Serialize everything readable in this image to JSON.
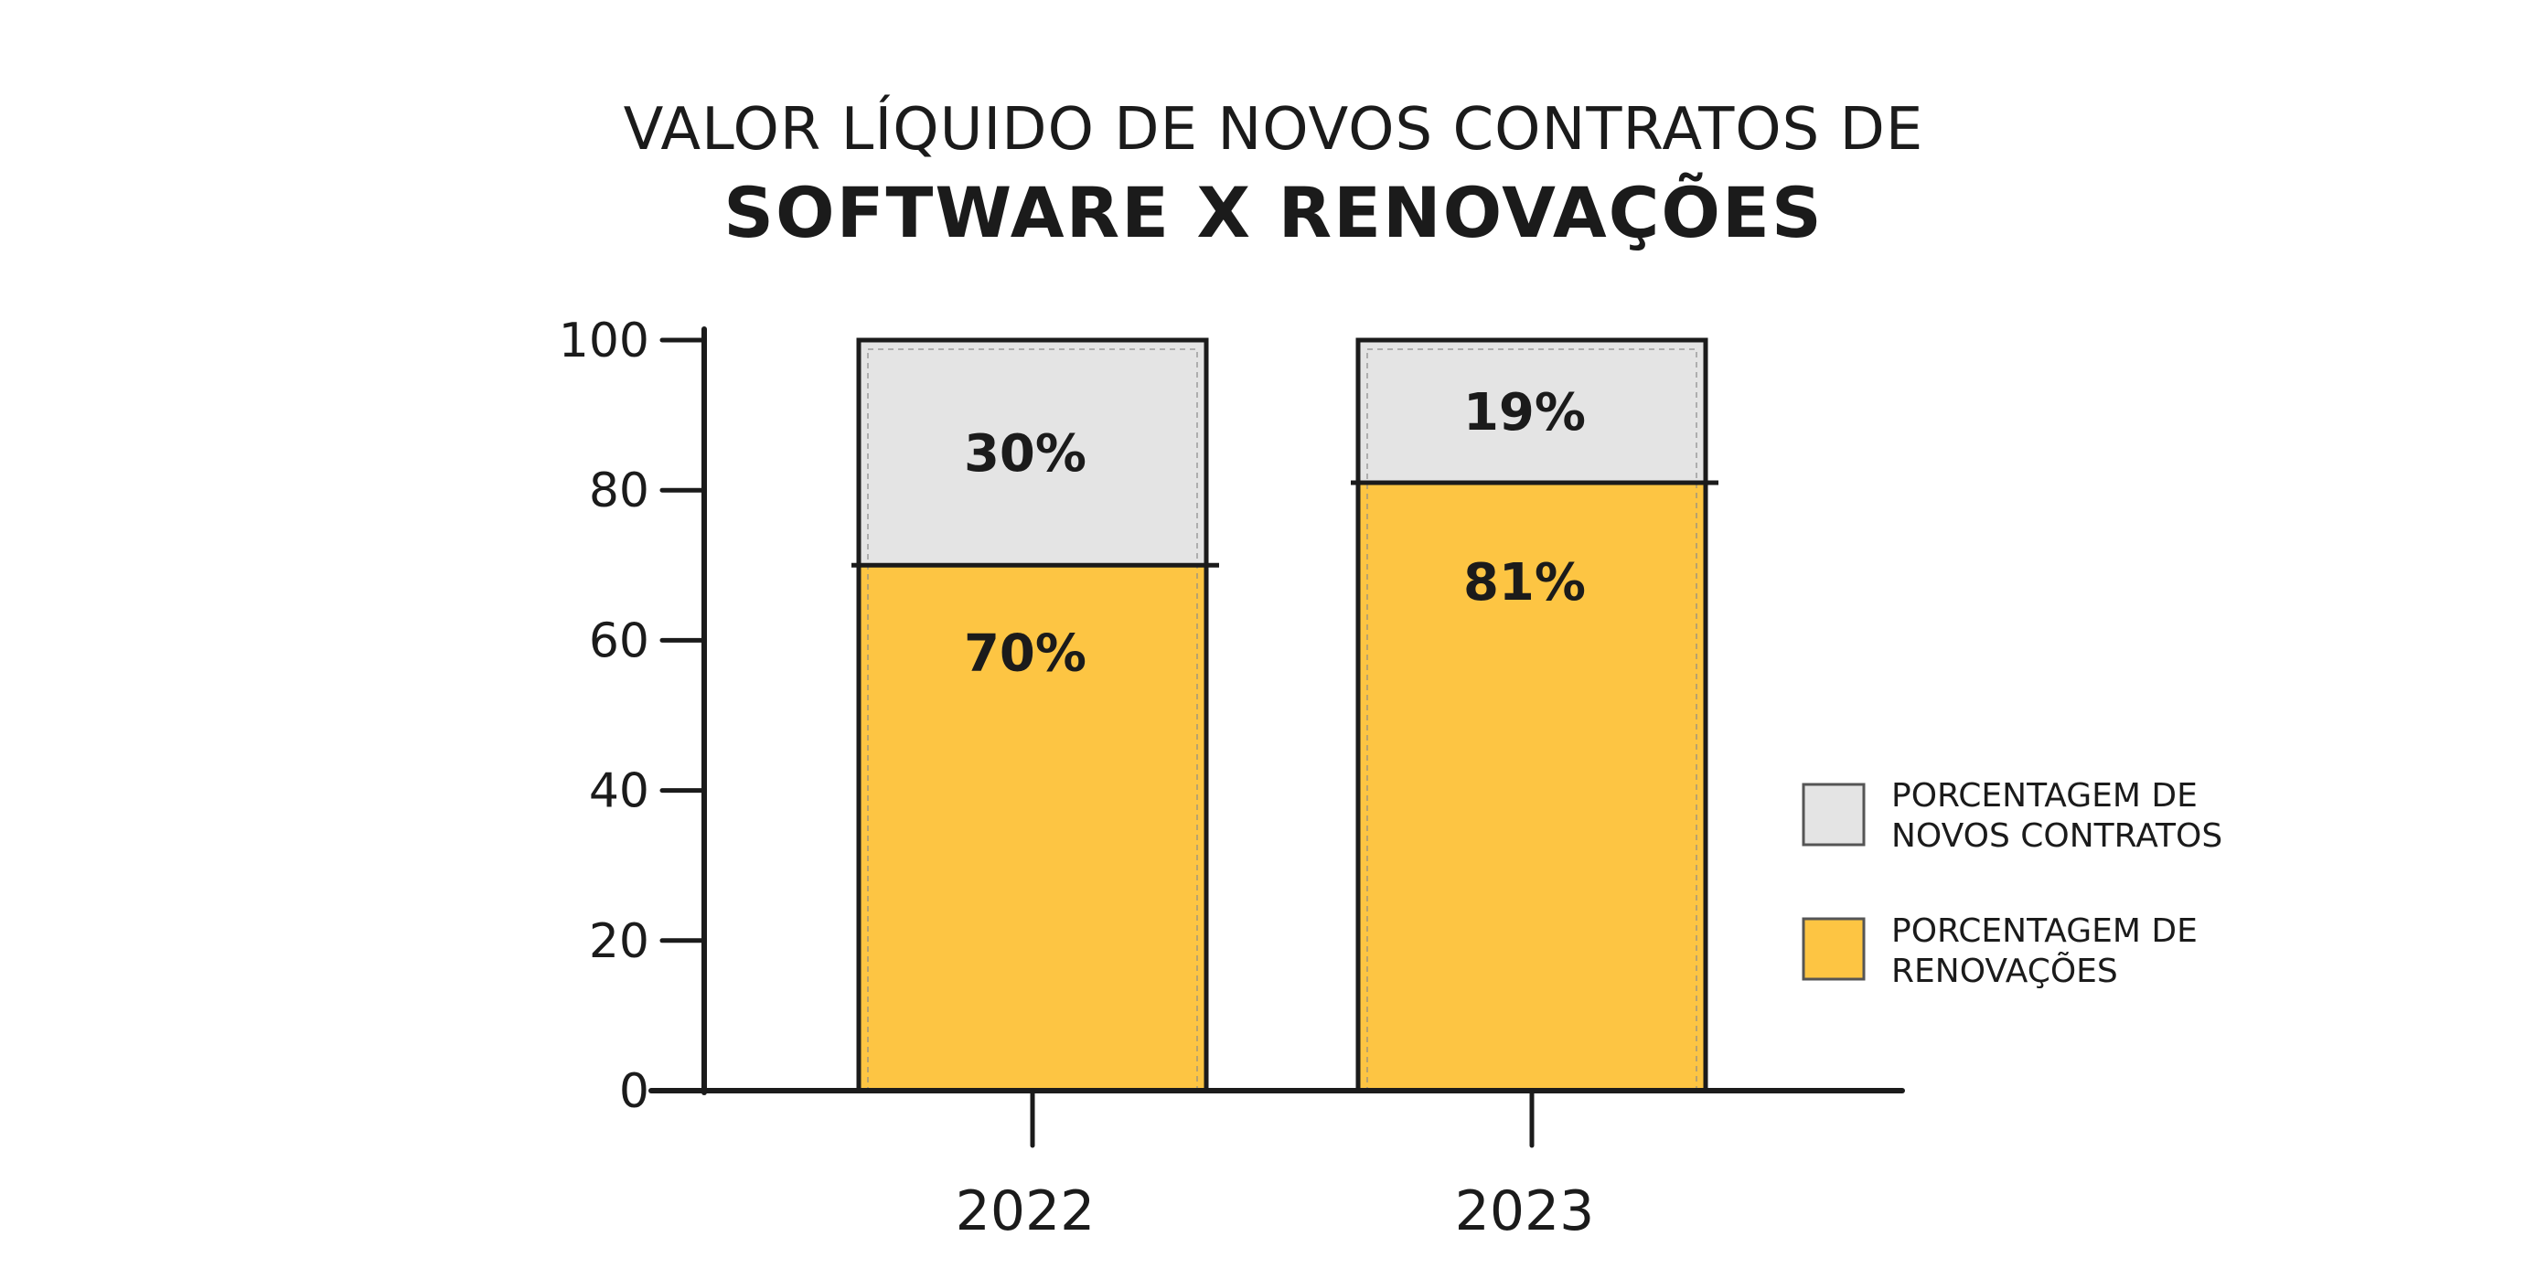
{
  "title_line1": "VALOR LÍQUIDO DE NOVOS CONTRATOS DE",
  "title_line2": "SOFTWARE X RENOVAÇÕES",
  "chart_data": {
    "type": "bar",
    "stacked": true,
    "categories": [
      "2022",
      "2023"
    ],
    "series": [
      {
        "name": "PORCENTAGEM DE RENOVAÇÕES",
        "values": [
          70,
          81
        ],
        "labels": [
          "70%",
          "81%"
        ],
        "color": "#fdc543"
      },
      {
        "name": "PORCENTAGEM DE NOVOS CONTRATOS",
        "values": [
          30,
          19
        ],
        "labels": [
          "30%",
          "19%"
        ],
        "color": "#e4e4e4"
      }
    ],
    "ylim": [
      0,
      100
    ],
    "yticks": [
      0,
      20,
      40,
      60,
      80,
      100
    ],
    "ytick_labels": [
      "0",
      "20",
      "40",
      "60",
      "80",
      "100"
    ],
    "xlabel": "",
    "ylabel": "",
    "grid": false,
    "legend_position": "right",
    "legend": [
      {
        "line1": "PORCENTAGEM DE",
        "line2": "NOVOS CONTRATOS",
        "color": "#e4e4e4"
      },
      {
        "line1": "PORCENTAGEM DE",
        "line2": "RENOVAÇÕES",
        "color": "#fdc543"
      }
    ],
    "stroke_color": "#1b1b1b"
  }
}
